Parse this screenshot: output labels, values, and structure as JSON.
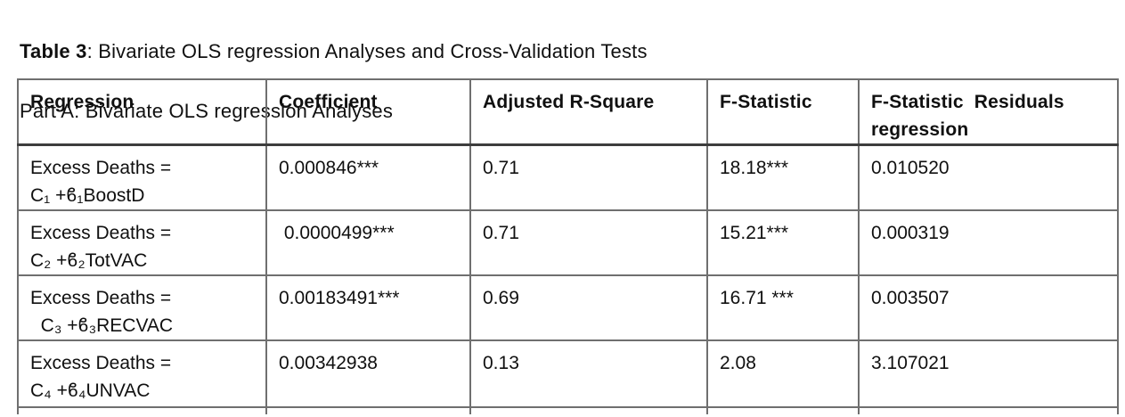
{
  "page": {
    "title_bold": "Table 3",
    "title_rest": ": Bivariate OLS regression Analyses and Cross-Validation Tests",
    "subtitle": "Part A: Bivariate OLS regression Analyses"
  },
  "table": {
    "columns": [
      {
        "line1": "Regression",
        "line2": ""
      },
      {
        "line1": "Coefficient",
        "line2": ""
      },
      {
        "line1": "Adjusted R-Square",
        "line2": ""
      },
      {
        "line1": "F-Statistic",
        "line2": ""
      },
      {
        "line1": "F-Statistic  Residuals",
        "line2": "regression"
      }
    ],
    "rows": [
      {
        "regression_line1": "Excess Deaths =",
        "regression_line2": "C₁ +ϐ₁BoostD",
        "coefficient": "0.000846***",
        "adjusted_r_square": "0.71",
        "f_statistic": "18.18***",
        "f_statistic_residuals": "0.010520"
      },
      {
        "regression_line1": "Excess Deaths =",
        "regression_line2": "C₂ +ϐ₂TotVAC",
        "coefficient": " 0.0000499***",
        "adjusted_r_square": "0.71",
        "f_statistic": "15.21***",
        "f_statistic_residuals": "0.000319"
      },
      {
        "regression_line1": "Excess Deaths =",
        "regression_line2": "  C₃ +ϐ₃RECVAC",
        "coefficient": "0.00183491***",
        "adjusted_r_square": "0.69",
        "f_statistic": "16.71 ***",
        "f_statistic_residuals": "0.003507"
      },
      {
        "regression_line1": "Excess Deaths =",
        "regression_line2": "C₄ +ϐ₄UNVAC",
        "coefficient": "0.00342938",
        "adjusted_r_square": "0.13",
        "f_statistic": "2.08",
        "f_statistic_residuals": "3.107021"
      }
    ]
  },
  "colors": {
    "border": "#6f6f6f",
    "header_separator": "#3d3d3d",
    "text": "#101010",
    "background": "#ffffff"
  }
}
